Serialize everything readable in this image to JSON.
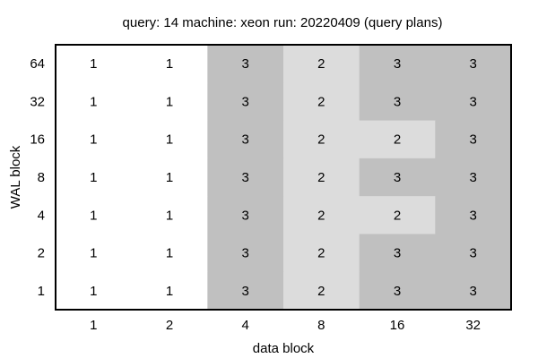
{
  "chart_data": {
    "type": "heatmap",
    "title": "query: 14  machine: xeon  run: 20220409  (query plans)",
    "xlabel": "data block",
    "ylabel": "WAL block",
    "x": [
      "1",
      "2",
      "4",
      "8",
      "16",
      "32"
    ],
    "y": [
      "64",
      "32",
      "16",
      "8",
      "4",
      "2",
      "1"
    ],
    "values": [
      [
        1,
        1,
        3,
        2,
        3,
        3
      ],
      [
        1,
        1,
        3,
        2,
        3,
        3
      ],
      [
        1,
        1,
        3,
        2,
        2,
        3
      ],
      [
        1,
        1,
        3,
        2,
        3,
        3
      ],
      [
        1,
        1,
        3,
        2,
        2,
        3
      ],
      [
        1,
        1,
        3,
        2,
        3,
        3
      ],
      [
        1,
        1,
        3,
        2,
        3,
        3
      ]
    ],
    "colors": {
      "1": "#ffffff",
      "2": "#dcdcdc",
      "3": "#c0c0c0"
    },
    "grid": false,
    "legend": "none"
  }
}
